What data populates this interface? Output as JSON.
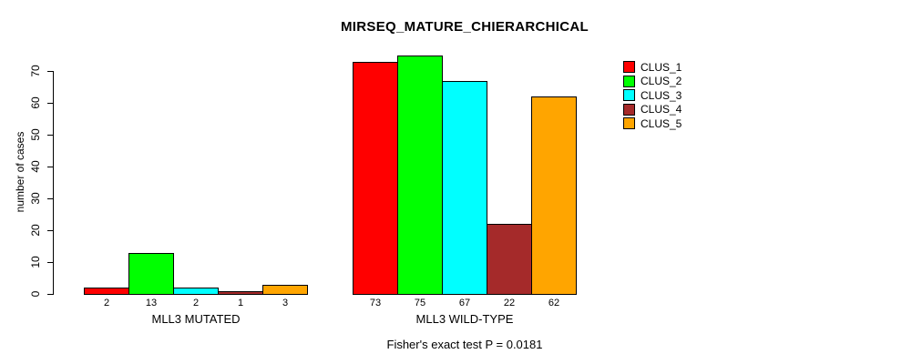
{
  "figure": {
    "title": "MIRSEQ_MATURE_CHIERARCHICAL",
    "note": "Fisher's exact test P = 0.0181"
  },
  "chart_data": {
    "type": "bar",
    "title": "MIRSEQ_MATURE_CHIERARCHICAL",
    "xlabel": "",
    "ylabel": "number of cases",
    "ylim": [
      0,
      70
    ],
    "yticks": [
      0,
      10,
      20,
      30,
      40,
      50,
      60,
      70
    ],
    "grid": false,
    "legend_position": "top-right",
    "bar_value_labels": true,
    "categories": [
      "MLL3 MUTATED",
      "MLL3 WILD-TYPE"
    ],
    "series": [
      {
        "name": "CLUS_1",
        "color": "#FF0000",
        "values": [
          2,
          73
        ]
      },
      {
        "name": "CLUS_2",
        "color": "#00FF00",
        "values": [
          13,
          75
        ]
      },
      {
        "name": "CLUS_3",
        "color": "#00FFFF",
        "values": [
          2,
          67
        ]
      },
      {
        "name": "CLUS_4",
        "color": "#A52A2A",
        "values": [
          1,
          22
        ]
      },
      {
        "name": "CLUS_5",
        "color": "#FFA500",
        "values": [
          3,
          62
        ]
      }
    ],
    "annotation": "Fisher's exact test P = 0.0181"
  }
}
